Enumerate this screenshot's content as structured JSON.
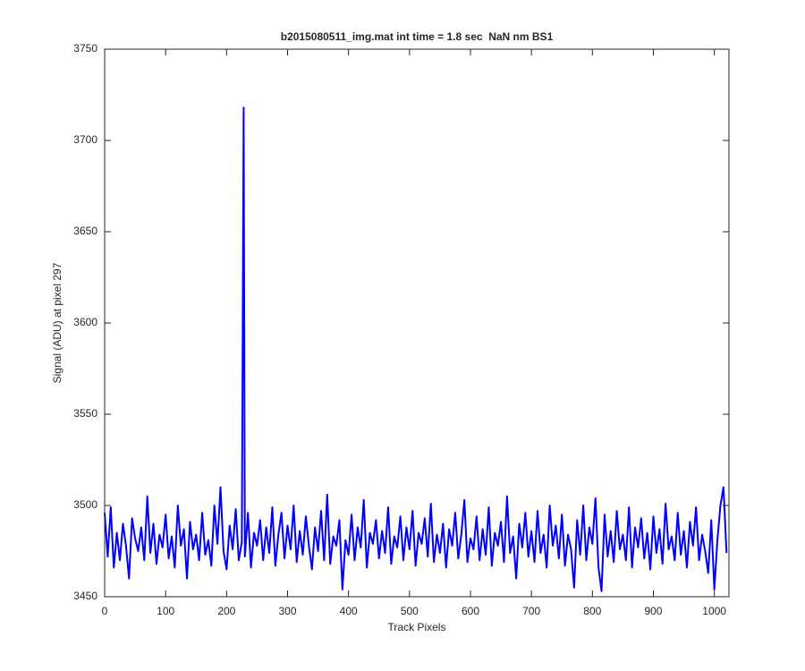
{
  "chart_data": {
    "type": "line",
    "title": "b2015080511_img.mat int time = 1.8 sec  NaN nm BS1",
    "xlabel": "Track Pixels",
    "ylabel": "Signal (ADU) at pixel 297",
    "xlim": [
      0,
      1024
    ],
    "ylim": [
      3450,
      3750
    ],
    "xticks": [
      0,
      100,
      200,
      300,
      400,
      500,
      600,
      700,
      800,
      900,
      1000
    ],
    "yticks": [
      3450,
      3500,
      3550,
      3600,
      3650,
      3700,
      3750
    ],
    "grid": false,
    "series": [
      {
        "color": "#0000ff",
        "x": [
          0,
          5,
          10,
          15,
          20,
          25,
          30,
          35,
          40,
          45,
          50,
          55,
          60,
          65,
          70,
          75,
          80,
          85,
          90,
          95,
          100,
          105,
          110,
          115,
          120,
          125,
          130,
          135,
          140,
          145,
          150,
          155,
          160,
          165,
          170,
          175,
          180,
          185,
          190,
          195,
          200,
          205,
          210,
          215,
          220,
          225,
          228,
          230,
          235,
          240,
          245,
          250,
          255,
          260,
          265,
          270,
          275,
          280,
          285,
          290,
          295,
          300,
          305,
          310,
          315,
          320,
          325,
          330,
          335,
          340,
          345,
          350,
          355,
          360,
          365,
          370,
          375,
          380,
          385,
          390,
          395,
          400,
          405,
          410,
          415,
          420,
          425,
          430,
          435,
          440,
          445,
          450,
          455,
          460,
          465,
          470,
          475,
          480,
          485,
          490,
          495,
          500,
          505,
          510,
          515,
          520,
          525,
          530,
          535,
          540,
          545,
          550,
          555,
          560,
          565,
          570,
          575,
          580,
          585,
          590,
          595,
          600,
          605,
          610,
          615,
          620,
          625,
          630,
          635,
          640,
          645,
          650,
          655,
          660,
          665,
          670,
          675,
          680,
          685,
          690,
          695,
          700,
          705,
          710,
          715,
          720,
          725,
          730,
          735,
          740,
          745,
          750,
          755,
          760,
          765,
          770,
          775,
          780,
          785,
          790,
          795,
          800,
          805,
          810,
          815,
          820,
          825,
          830,
          835,
          840,
          845,
          850,
          855,
          860,
          865,
          870,
          875,
          880,
          885,
          890,
          895,
          900,
          905,
          910,
          915,
          920,
          925,
          930,
          935,
          940,
          945,
          950,
          955,
          960,
          965,
          970,
          975,
          980,
          985,
          990,
          995,
          1000,
          1005,
          1010,
          1015,
          1020
        ],
        "values": [
          3496,
          3472,
          3499,
          3466,
          3485,
          3470,
          3490,
          3478,
          3460,
          3493,
          3482,
          3475,
          3488,
          3470,
          3505,
          3474,
          3490,
          3468,
          3484,
          3477,
          3495,
          3471,
          3483,
          3466,
          3500,
          3478,
          3487,
          3460,
          3491,
          3476,
          3484,
          3470,
          3496,
          3473,
          3481,
          3467,
          3500,
          3479,
          3510,
          3475,
          3465,
          3489,
          3476,
          3498,
          3470,
          3480,
          3718,
          3472,
          3496,
          3466,
          3485,
          3478,
          3492,
          3470,
          3488,
          3474,
          3499,
          3467,
          3484,
          3496,
          3471,
          3489,
          3476,
          3500,
          3469,
          3486,
          3473,
          3494,
          3478,
          3465,
          3488,
          3475,
          3497,
          3470,
          3506,
          3468,
          3483,
          3478,
          3492,
          3454,
          3481,
          3473,
          3495,
          3470,
          3488,
          3477,
          3503,
          3466,
          3485,
          3479,
          3492,
          3471,
          3486,
          3474,
          3499,
          3468,
          3483,
          3477,
          3494,
          3470,
          3488,
          3476,
          3497,
          3467,
          3485,
          3479,
          3493,
          3472,
          3501,
          3469,
          3484,
          3474,
          3490,
          3466,
          3487,
          3478,
          3496,
          3471,
          3484,
          3503,
          3469,
          3482,
          3476,
          3494,
          3470,
          3487,
          3473,
          3499,
          3467,
          3485,
          3478,
          3491,
          3469,
          3505,
          3474,
          3483,
          3460,
          3490,
          3477,
          3496,
          3472,
          3486,
          3469,
          3497,
          3474,
          3484,
          3466,
          3500,
          3478,
          3489,
          3471,
          3495,
          3467,
          3484,
          3476,
          3455,
          3492,
          3473,
          3500,
          3470,
          3488,
          3479,
          3504,
          3466,
          3453,
          3495,
          3472,
          3486,
          3469,
          3497,
          3476,
          3484,
          3470,
          3499,
          3466,
          3488,
          3477,
          3493,
          3471,
          3485,
          3465,
          3494,
          3474,
          3487,
          3468,
          3501,
          3476,
          3483,
          3470,
          3496,
          3473,
          3486,
          3466,
          3491,
          3478,
          3499,
          3470,
          3484,
          3475,
          3463,
          3492,
          3454,
          3481,
          3500,
          3510,
          3474
        ]
      }
    ]
  }
}
